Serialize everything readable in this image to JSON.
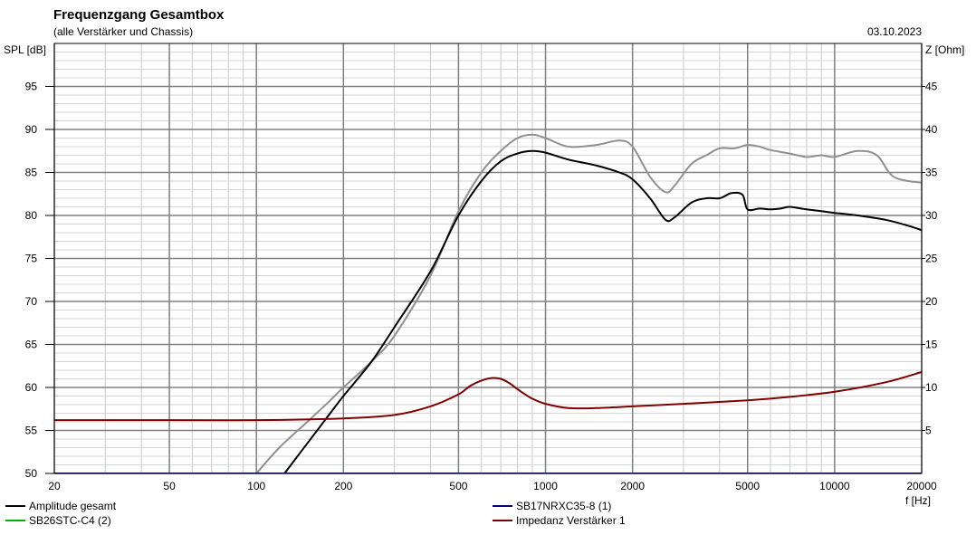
{
  "chart_data": {
    "type": "line",
    "title": "Frequenzgang Gesamtbox",
    "subtitle": "(alle Verstärker und Chassis)",
    "date": "03.10.2023",
    "xlabel": "f [Hz]",
    "ylabel_left": "SPL [dB]",
    "ylabel_right": "Z [Ohm]",
    "x_scale": "log",
    "xlim": [
      20,
      20000
    ],
    "ylim_left": [
      50,
      100
    ],
    "ylim_right": [
      0,
      50
    ],
    "x_ticks": [
      20,
      50,
      100,
      200,
      500,
      1000,
      2000,
      5000,
      10000,
      20000
    ],
    "x_tick_labels": [
      "20",
      "50",
      "100",
      "200",
      "500",
      "1000",
      "2000",
      "5000",
      "10000",
      "20000"
    ],
    "y_left_ticks": [
      50,
      55,
      60,
      65,
      70,
      75,
      80,
      85,
      90,
      95
    ],
    "y_left_tick_labels": [
      "50",
      "55",
      "60",
      "65",
      "70",
      "75",
      "80",
      "85",
      "90",
      "95"
    ],
    "y_right_ticks": [
      5,
      10,
      15,
      20,
      25,
      30,
      35,
      40,
      45
    ],
    "y_right_tick_labels": [
      "5",
      "10",
      "15",
      "20",
      "25",
      "30",
      "35",
      "40",
      "45"
    ],
    "grid": true,
    "series": [
      {
        "name": "Amplitude gesamt",
        "color": "#000000",
        "axis": "left",
        "x": [
          125,
          150,
          180,
          200,
          250,
          300,
          400,
          500,
          600,
          700,
          800,
          900,
          1000,
          1200,
          1500,
          1800,
          2000,
          2300,
          2600,
          2800,
          3200,
          3600,
          4000,
          4400,
          4800,
          5000,
          5500,
          6000,
          6500,
          7000,
          8000,
          9000,
          10000,
          12000,
          15000,
          18000,
          20000
        ],
        "y": [
          50,
          53.5,
          57,
          59,
          63,
          67,
          73.5,
          80,
          84,
          86.3,
          87.2,
          87.5,
          87.3,
          86.5,
          85.8,
          85,
          84.2,
          82,
          79.5,
          79.8,
          81.5,
          82,
          82,
          82.6,
          82.4,
          80.7,
          80.8,
          80.7,
          80.8,
          81,
          80.7,
          80.5,
          80.3,
          80,
          79.5,
          78.8,
          78.3
        ]
      },
      {
        "name": "",
        "color": "#909090",
        "axis": "left",
        "x": [
          100,
          120,
          150,
          180,
          200,
          250,
          300,
          400,
          500,
          600,
          700,
          800,
          900,
          1000,
          1200,
          1500,
          1800,
          2000,
          2300,
          2600,
          2800,
          3200,
          3600,
          4000,
          4500,
          5000,
          5500,
          6000,
          7000,
          8000,
          9000,
          10000,
          12000,
          14000,
          16000,
          20000
        ],
        "y": [
          50,
          53,
          56,
          58.5,
          60,
          63,
          66,
          73,
          80.5,
          85,
          87.5,
          89,
          89.4,
          89,
          88,
          88.2,
          88.7,
          88,
          84.5,
          82.7,
          83.5,
          86,
          87,
          87.8,
          87.8,
          88.2,
          88,
          87.6,
          87.2,
          86.8,
          87,
          86.8,
          87.5,
          87,
          84.5,
          83.8
        ]
      },
      {
        "name": "Impedanz Verstärker 1",
        "color": "#800000",
        "axis": "right",
        "x": [
          20,
          50,
          100,
          200,
          300,
          400,
          500,
          550,
          600,
          650,
          700,
          750,
          800,
          900,
          1000,
          1200,
          1500,
          2000,
          3000,
          5000,
          7000,
          10000,
          15000,
          20000
        ],
        "y": [
          6.2,
          6.2,
          6.2,
          6.4,
          6.8,
          7.8,
          9.2,
          10.2,
          10.8,
          11.1,
          11,
          10.5,
          9.8,
          8.7,
          8.1,
          7.6,
          7.6,
          7.8,
          8.1,
          8.5,
          8.9,
          9.5,
          10.6,
          11.8
        ]
      },
      {
        "name": "SB17NRXC35-8 (1)",
        "color": "#000080",
        "axis": "left",
        "x": [
          20,
          20000
        ],
        "y": [
          50,
          50
        ]
      },
      {
        "name": "SB26STC-C4 (2)",
        "color": "#00b000",
        "axis": "left",
        "x": [],
        "y": []
      }
    ],
    "legend": [
      {
        "label": "Amplitude gesamt",
        "color": "#000000"
      },
      {
        "label": "SB26STC-C4 (2)",
        "color": "#00b000"
      },
      {
        "label": "SB17NRXC35-8 (1)",
        "color": "#000080"
      },
      {
        "label": "Impedanz Verstärker 1",
        "color": "#800000"
      }
    ],
    "legend_position": "bottom"
  }
}
